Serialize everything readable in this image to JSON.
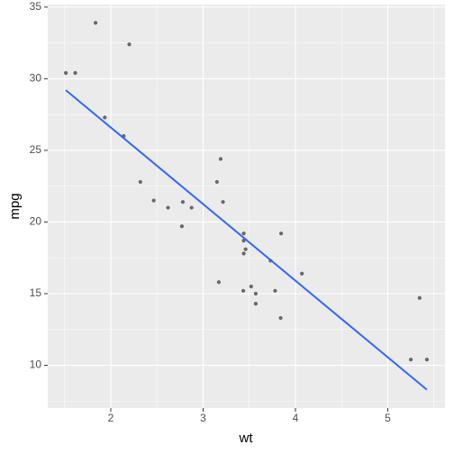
{
  "chart_data": {
    "type": "scatter",
    "x_label": "wt",
    "y_label": "mpg",
    "xlim": [
      1.317,
      5.62
    ],
    "ylim": [
      7.016,
      35.18
    ],
    "xticks": [
      2,
      3,
      4,
      5
    ],
    "yticks": [
      10,
      15,
      20,
      25,
      30,
      35
    ],
    "grid": true,
    "points": {
      "color": "#595959",
      "x": [
        2.62,
        2.875,
        2.32,
        3.215,
        3.44,
        3.46,
        3.57,
        3.19,
        3.15,
        3.44,
        3.44,
        4.07,
        3.73,
        3.78,
        5.25,
        5.424,
        5.345,
        2.2,
        1.615,
        1.835,
        2.465,
        3.52,
        3.435,
        3.84,
        3.845,
        1.935,
        2.14,
        1.513,
        3.17,
        2.77,
        3.57,
        2.78
      ],
      "values": [
        21,
        21,
        22.8,
        21.4,
        18.7,
        18.1,
        14.3,
        24.4,
        22.8,
        19.2,
        17.8,
        16.4,
        17.3,
        15.2,
        10.4,
        10.4,
        14.7,
        32.4,
        30.4,
        33.9,
        21.5,
        15.5,
        15.2,
        13.3,
        19.2,
        27.3,
        26,
        30.4,
        15.8,
        19.7,
        15,
        21.4
      ]
    },
    "line": {
      "color": "#3366ff",
      "x": [
        1.513,
        5.424
      ],
      "values": [
        29.199,
        8.296
      ]
    }
  }
}
